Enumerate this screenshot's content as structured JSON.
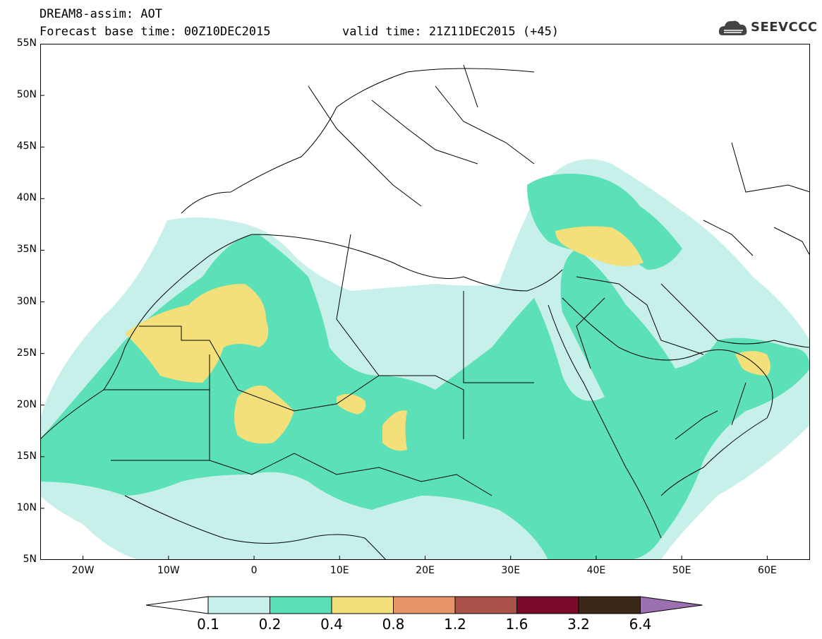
{
  "title": {
    "line1": "DREAM8-assim: AOT",
    "line2": "Forecast base time: 00Z10DEC2015",
    "valid": "valid time: 21Z11DEC2015 (+45)"
  },
  "logo": {
    "text": "SEEVCCC",
    "icon": "cloud-logo-icon"
  },
  "axes": {
    "lat_ticks": [
      "55N",
      "50N",
      "45N",
      "40N",
      "35N",
      "30N",
      "25N",
      "20N",
      "15N",
      "10N",
      "5N"
    ],
    "lon_ticks": [
      "20W",
      "10W",
      "0",
      "10E",
      "20E",
      "30E",
      "40E",
      "50E",
      "60E"
    ],
    "lon_range": [
      -25,
      65
    ],
    "lat_range": [
      5,
      55
    ]
  },
  "colorbar": {
    "labels": [
      "0.1",
      "0.2",
      "0.4",
      "0.8",
      "1.2",
      "1.6",
      "3.2",
      "6.4"
    ],
    "colors": [
      "#ffffff",
      "#c8f0ea",
      "#5ce0b8",
      "#f3e07a",
      "#e8946a",
      "#a8524a",
      "#7a0a2a",
      "#3c2818",
      "#9a70b0"
    ]
  }
}
